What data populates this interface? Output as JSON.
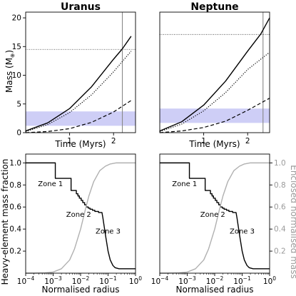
{
  "chart_data": [
    {
      "panel": "uranus-mass",
      "type": "line",
      "title": "Uranus",
      "xlabel": "Time (Myrs)",
      "ylabel": "Mass (M",
      "ylabel_symbol": "⊕",
      "ylabel_close": ")",
      "xlim": [
        0,
        2.5
      ],
      "ylim": [
        0,
        21
      ],
      "xticks": [
        1,
        2
      ],
      "yticks": [
        0,
        5,
        10,
        15,
        20
      ],
      "series": [
        {
          "style": "solid",
          "color": "#000000",
          "x": [
            0,
            0.5,
            1.0,
            1.5,
            2.0,
            2.2,
            2.4
          ],
          "y": [
            0.3,
            1.7,
            4.2,
            8.0,
            12.8,
            14.6,
            16.8
          ]
        },
        {
          "style": "dotted",
          "color": "#000000",
          "x": [
            0,
            0.5,
            1.0,
            1.5,
            2.0,
            2.4
          ],
          "y": [
            0.2,
            1.4,
            3.5,
            6.6,
            10.6,
            14.2
          ]
        },
        {
          "style": "dashed",
          "color": "#000000",
          "x": [
            0,
            0.5,
            1.0,
            1.5,
            2.0,
            2.4
          ],
          "y": [
            0.0,
            0.2,
            0.7,
            1.8,
            3.6,
            5.6
          ]
        }
      ],
      "hlines": [
        {
          "y": 14.5,
          "style": "dotted",
          "color": "#555555"
        }
      ],
      "vlines": [
        {
          "x": 2.2,
          "color": "#888888"
        }
      ],
      "hbands": [
        {
          "y0": 1.2,
          "y1": 3.7,
          "color": "#c9c9f5"
        }
      ]
    },
    {
      "panel": "neptune-mass",
      "type": "line",
      "title": "Neptune",
      "xlabel": "Time (Myrs)",
      "xlim": [
        0,
        2.5
      ],
      "ylim": [
        0,
        21
      ],
      "xticks": [
        1,
        2
      ],
      "series": [
        {
          "style": "solid",
          "color": "#000000",
          "x": [
            0,
            0.5,
            1.0,
            1.5,
            2.0,
            2.3,
            2.5
          ],
          "y": [
            0.3,
            1.9,
            4.8,
            9.0,
            14.2,
            17.2,
            20.0
          ]
        },
        {
          "style": "dotted",
          "color": "#000000",
          "x": [
            0,
            0.5,
            1.0,
            1.5,
            2.0,
            2.5
          ],
          "y": [
            0.2,
            1.5,
            3.8,
            7.0,
            11.0,
            14.0
          ]
        },
        {
          "style": "dashed",
          "color": "#000000",
          "x": [
            0,
            0.5,
            1.0,
            1.5,
            2.0,
            2.5
          ],
          "y": [
            0.0,
            0.3,
            0.9,
            2.0,
            3.9,
            6.0
          ]
        }
      ],
      "hlines": [
        {
          "y": 17.1,
          "style": "dotted",
          "color": "#555555"
        }
      ],
      "vlines": [
        {
          "x": 2.35,
          "color": "#888888"
        }
      ],
      "hbands": [
        {
          "y0": 1.7,
          "y1": 4.2,
          "color": "#c9c9f5"
        }
      ]
    },
    {
      "panel": "uranus-profile",
      "type": "line",
      "xlabel": "Normalised radius",
      "ylabel": "Heavy-element mass fraction",
      "xscale": "log",
      "xlim": [
        0.0001,
        1
      ],
      "ylim": [
        0,
        1.08
      ],
      "xticks": [
        {
          "value": 0.0001,
          "base": "10",
          "exp": "−4"
        },
        {
          "value": 0.001,
          "base": "10",
          "exp": "−3"
        },
        {
          "value": 0.01,
          "base": "10",
          "exp": "−2"
        },
        {
          "value": 0.1,
          "base": "10",
          "exp": "−1"
        },
        {
          "value": 1,
          "base": "10",
          "exp": "0"
        }
      ],
      "yticks": [
        "0.2",
        "0.4",
        "0.6",
        "0.8",
        "1.0"
      ],
      "annotations": [
        {
          "text": "Zone 1",
          "x": 0.0008,
          "y": 0.79
        },
        {
          "text": "Zone 2",
          "x": 0.0085,
          "y": 0.51
        },
        {
          "text": "Zone 3",
          "x": 0.1,
          "y": 0.36
        }
      ],
      "series": [
        {
          "name": "heavy-element",
          "style": "solid",
          "color": "#000000",
          "x": [
            0.0001,
            0.0012,
            0.0012,
            0.0045,
            0.0045,
            0.007,
            0.007,
            0.008,
            0.008,
            0.009,
            0.009,
            0.0105,
            0.0105,
            0.012,
            0.012,
            0.014,
            0.014,
            0.016,
            0.016,
            0.019,
            0.019,
            0.022,
            0.022,
            0.027,
            0.027,
            0.033,
            0.033,
            0.045,
            0.045,
            0.06,
            0.065,
            0.08,
            0.1,
            0.12,
            0.15,
            0.18,
            0.25,
            0.4,
            0.7,
            1.0
          ],
          "y": [
            1.0,
            1.0,
            0.86,
            0.86,
            0.75,
            0.75,
            0.72,
            0.72,
            0.7,
            0.7,
            0.68,
            0.68,
            0.66,
            0.66,
            0.64,
            0.64,
            0.62,
            0.62,
            0.6,
            0.6,
            0.59,
            0.59,
            0.58,
            0.58,
            0.57,
            0.57,
            0.56,
            0.56,
            0.55,
            0.55,
            0.5,
            0.35,
            0.2,
            0.12,
            0.07,
            0.05,
            0.04,
            0.04,
            0.04,
            0.04
          ]
        },
        {
          "name": "enclosed",
          "style": "solid",
          "color": "#b0b0b0",
          "x": [
            0.0001,
            0.0002,
            0.0005,
            0.001,
            0.002,
            0.004,
            0.006,
            0.01,
            0.015,
            0.02,
            0.03,
            0.05,
            0.08,
            0.12,
            0.2,
            0.4,
            1.0
          ],
          "y": [
            0.0,
            0.0,
            0.003,
            0.01,
            0.04,
            0.12,
            0.22,
            0.4,
            0.58,
            0.7,
            0.83,
            0.93,
            0.97,
            0.99,
            1.0,
            1.0,
            1.0
          ]
        }
      ]
    },
    {
      "panel": "neptune-profile",
      "type": "line",
      "xlabel": "Normalised radius",
      "ylabel_right": "Enclosed normalised mass",
      "xscale": "log",
      "xlim": [
        0.0001,
        1
      ],
      "ylim": [
        0,
        1.08
      ],
      "xticks": [
        {
          "value": 0.0001,
          "base": "10",
          "exp": "−4"
        },
        {
          "value": 0.001,
          "base": "10",
          "exp": "−3"
        },
        {
          "value": 0.01,
          "base": "10",
          "exp": "−2"
        },
        {
          "value": 0.1,
          "base": "10",
          "exp": "−1"
        },
        {
          "value": 1,
          "base": "10",
          "exp": "0"
        }
      ],
      "yticks_right": [
        "0.2",
        "0.4",
        "0.6",
        "0.8",
        "1.0"
      ],
      "annotations": [
        {
          "text": "Zone 1",
          "x": 0.0008,
          "y": 0.79
        },
        {
          "text": "Zone 2",
          "x": 0.0085,
          "y": 0.51
        },
        {
          "text": "Zone 3",
          "x": 0.1,
          "y": 0.36
        }
      ],
      "series": [
        {
          "name": "heavy-element",
          "style": "solid",
          "color": "#000000",
          "x": [
            0.0001,
            0.0012,
            0.0012,
            0.0045,
            0.0045,
            0.007,
            0.007,
            0.008,
            0.008,
            0.009,
            0.009,
            0.0105,
            0.0105,
            0.012,
            0.012,
            0.014,
            0.014,
            0.016,
            0.016,
            0.019,
            0.019,
            0.022,
            0.022,
            0.027,
            0.027,
            0.033,
            0.033,
            0.045,
            0.045,
            0.06,
            0.065,
            0.08,
            0.1,
            0.12,
            0.15,
            0.18,
            0.25,
            0.4,
            0.7,
            1.0
          ],
          "y": [
            1.0,
            1.0,
            0.86,
            0.86,
            0.75,
            0.75,
            0.72,
            0.72,
            0.7,
            0.7,
            0.68,
            0.68,
            0.66,
            0.66,
            0.64,
            0.64,
            0.62,
            0.62,
            0.6,
            0.6,
            0.59,
            0.59,
            0.58,
            0.58,
            0.57,
            0.57,
            0.56,
            0.56,
            0.55,
            0.55,
            0.5,
            0.35,
            0.2,
            0.12,
            0.07,
            0.05,
            0.04,
            0.04,
            0.04,
            0.04
          ]
        },
        {
          "name": "enclosed",
          "style": "solid",
          "color": "#b0b0b0",
          "x": [
            0.0001,
            0.0002,
            0.0005,
            0.001,
            0.002,
            0.004,
            0.006,
            0.01,
            0.015,
            0.02,
            0.03,
            0.05,
            0.08,
            0.12,
            0.2,
            0.4,
            1.0
          ],
          "y": [
            0.0,
            0.0,
            0.003,
            0.01,
            0.04,
            0.12,
            0.22,
            0.4,
            0.58,
            0.7,
            0.83,
            0.93,
            0.97,
            0.99,
            1.0,
            1.0,
            1.0
          ]
        }
      ]
    }
  ]
}
